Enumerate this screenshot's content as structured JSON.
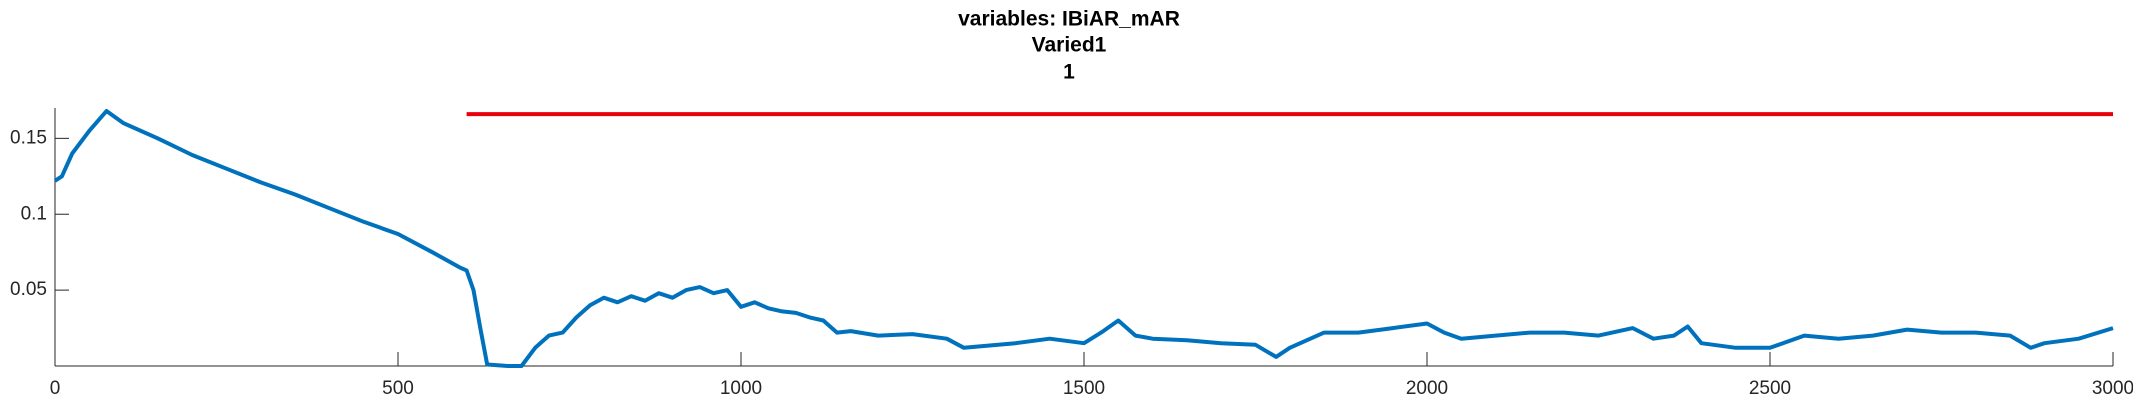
{
  "chart_data": {
    "type": "line",
    "title": [
      "variables: IBiAR_mAR",
      "Varied1",
      "1"
    ],
    "xlim": [
      0,
      3000
    ],
    "xticks": [
      0,
      500,
      1000,
      1500,
      2000,
      2500,
      3000
    ],
    "ylim": [
      0,
      0.17
    ],
    "yticks": [
      0.05,
      0.1,
      0.15
    ],
    "grid": false,
    "series": [
      {
        "color": "#0072bd",
        "x": [
          0,
          10,
          25,
          50,
          75,
          100,
          150,
          200,
          250,
          300,
          350,
          400,
          450,
          500,
          550,
          590,
          600,
          610,
          620,
          630,
          660,
          680,
          700,
          720,
          740,
          760,
          780,
          800,
          820,
          840,
          860,
          880,
          900,
          920,
          940,
          960,
          980,
          1000,
          1020,
          1040,
          1060,
          1080,
          1100,
          1120,
          1140,
          1160,
          1200,
          1250,
          1300,
          1325,
          1350,
          1400,
          1450,
          1500,
          1525,
          1550,
          1575,
          1600,
          1650,
          1700,
          1750,
          1780,
          1800,
          1850,
          1900,
          1950,
          2000,
          2025,
          2050,
          2100,
          2150,
          2200,
          2250,
          2300,
          2330,
          2360,
          2380,
          2400,
          2450,
          2500,
          2550,
          2600,
          2650,
          2700,
          2750,
          2800,
          2850,
          2880,
          2900,
          2950,
          3000
        ],
        "values": [
          0.122,
          0.125,
          0.14,
          0.155,
          0.168,
          0.16,
          0.15,
          0.139,
          0.13,
          0.121,
          0.113,
          0.104,
          0.095,
          0.087,
          0.075,
          0.065,
          0.063,
          0.05,
          0.025,
          0.001,
          0,
          0,
          0.012,
          0.02,
          0.022,
          0.032,
          0.04,
          0.045,
          0.042,
          0.046,
          0.043,
          0.048,
          0.045,
          0.05,
          0.052,
          0.048,
          0.05,
          0.039,
          0.042,
          0.038,
          0.036,
          0.035,
          0.032,
          0.03,
          0.022,
          0.023,
          0.02,
          0.021,
          0.018,
          0.012,
          0.013,
          0.015,
          0.018,
          0.015,
          0.022,
          0.03,
          0.02,
          0.018,
          0.017,
          0.015,
          0.014,
          0.006,
          0.012,
          0.022,
          0.022,
          0.025,
          0.028,
          0.022,
          0.018,
          0.02,
          0.022,
          0.022,
          0.02,
          0.025,
          0.018,
          0.02,
          0.026,
          0.015,
          0.012,
          0.012,
          0.02,
          0.018,
          0.02,
          0.024,
          0.022,
          0.022,
          0.02,
          0.012,
          0.015,
          0.018,
          0.025
        ]
      },
      {
        "color": "#e8000b",
        "x": [
          600,
          3000
        ],
        "values": [
          0.166,
          0.166
        ]
      }
    ]
  }
}
